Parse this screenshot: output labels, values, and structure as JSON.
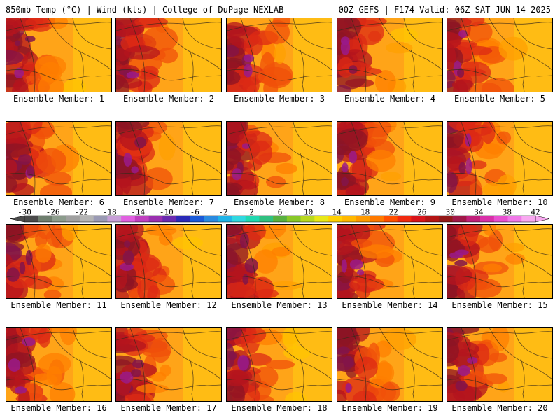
{
  "header": {
    "left": "850mb Temp (°C) | Wind (kts) | College of DuPage NEXLAB",
    "right": "00Z GEFS | F174 Valid: 06Z SAT JUN 14 2025"
  },
  "colorbar": {
    "tick_labels": [
      "-30",
      "-26",
      "-22",
      "-18",
      "-14",
      "-10",
      "-6",
      "-2",
      "2",
      "6",
      "10",
      "14",
      "18",
      "22",
      "26",
      "30",
      "34",
      "38",
      "42"
    ],
    "colors": [
      "#4a4a4a",
      "#6e7e6e",
      "#8c9c8c",
      "#a0a0a0",
      "#b4b4b4",
      "#9a9ab4",
      "#c8a0d8",
      "#e060e0",
      "#c040c0",
      "#9a30b0",
      "#6a2ab0",
      "#2a2ab8",
      "#1a5ad8",
      "#2a8ae0",
      "#20b4e8",
      "#30d8e0",
      "#20d8b0",
      "#30c080",
      "#58b040",
      "#88c828",
      "#b8d820",
      "#e8e818",
      "#ffd000",
      "#ffb800",
      "#ff9a00",
      "#ff7a00",
      "#ff5000",
      "#f02a10",
      "#d8141a",
      "#b41414",
      "#921818",
      "#a01848",
      "#c0207a",
      "#d830a8",
      "#e850d0",
      "#f078e8",
      "#f8a8f0"
    ]
  },
  "panels": [
    {
      "label": "Ensemble Member: 1"
    },
    {
      "label": "Ensemble Member: 2"
    },
    {
      "label": "Ensemble Member: 3"
    },
    {
      "label": "Ensemble Member: 4"
    },
    {
      "label": "Ensemble Member: 5"
    },
    {
      "label": "Ensemble Member: 6"
    },
    {
      "label": "Ensemble Member: 7"
    },
    {
      "label": "Ensemble Member: 8"
    },
    {
      "label": "Ensemble Member: 9"
    },
    {
      "label": "Ensemble Member: 10"
    },
    {
      "label": "Ensemble Member: 11"
    },
    {
      "label": "Ensemble Member: 12"
    },
    {
      "label": "Ensemble Member: 13"
    },
    {
      "label": "Ensemble Member: 14"
    },
    {
      "label": "Ensemble Member: 15"
    },
    {
      "label": "Ensemble Member: 16"
    },
    {
      "label": "Ensemble Member: 17"
    },
    {
      "label": "Ensemble Member: 18"
    },
    {
      "label": "Ensemble Member: 19"
    },
    {
      "label": "Ensemble Member: 20"
    }
  ]
}
